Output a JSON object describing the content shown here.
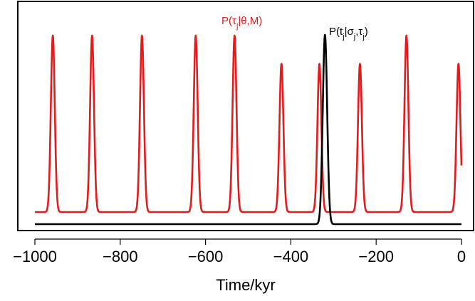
{
  "chart_data": {
    "type": "line",
    "xlabel": "Time/kyr",
    "ylabel": "",
    "xlim": [
      -1000,
      0
    ],
    "x_ticks": [
      -1000,
      -800,
      -600,
      -400,
      -200,
      0
    ],
    "x_tick_labels": [
      "−1000",
      "−800",
      "−600",
      "−400",
      "−200",
      "0"
    ],
    "y_axis_shown": false,
    "grid": false,
    "series": [
      {
        "name": "P(τ_j|θ,M)",
        "color": "#e41a1c",
        "baseline": 0.0,
        "peaks": [
          {
            "x": -958,
            "height": 1.0
          },
          {
            "x": -866,
            "height": 1.0
          },
          {
            "x": -749,
            "height": 1.0
          },
          {
            "x": -623,
            "height": 1.0
          },
          {
            "x": -532,
            "height": 1.0
          },
          {
            "x": -422,
            "height": 0.84
          },
          {
            "x": -333,
            "height": 0.84
          },
          {
            "x": -238,
            "height": 0.84
          },
          {
            "x": -129,
            "height": 1.0
          },
          {
            "x": -7,
            "height": 0.84
          }
        ],
        "label_parts": {
          "main": "P(τ",
          "sub": "j",
          "tail": "|θ,M)"
        }
      },
      {
        "name": "P(t_j|σ_j,τ_j)",
        "color": "#000000",
        "baseline": 0.0,
        "peaks": [
          {
            "x": -320,
            "height": 1.0
          }
        ],
        "label_parts": {
          "p1": "P(t",
          "s1": "j",
          "p2": "|σ",
          "s2": "j",
          "p3": ",τ",
          "s3": "j",
          "p4": ")"
        }
      }
    ]
  }
}
